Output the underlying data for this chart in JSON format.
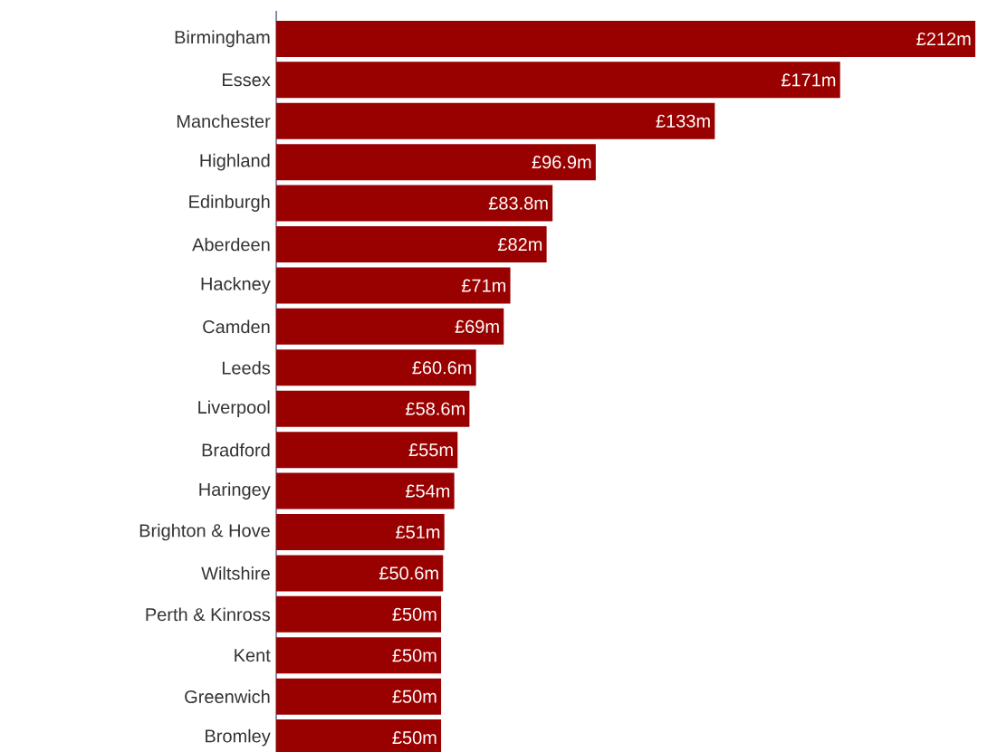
{
  "chart_data": {
    "type": "bar",
    "orientation": "horizontal",
    "categories": [
      "Birmingham",
      "Essex",
      "Manchester",
      "Highland",
      "Edinburgh",
      "Aberdeen",
      "Hackney",
      "Camden",
      "Leeds",
      "Liverpool",
      "Bradford",
      "Haringey",
      "Brighton & Hove",
      "Wiltshire",
      "Perth & Kinross",
      "Kent",
      "Greenwich",
      "Bromley"
    ],
    "values": [
      212,
      171,
      133,
      96.9,
      83.8,
      82,
      71,
      69,
      60.6,
      58.6,
      55,
      54,
      51,
      50.6,
      50,
      50,
      50,
      50
    ],
    "value_labels": [
      "£212m",
      "£171m",
      "£133m",
      "£96.9m",
      "£83.8m",
      "£82m",
      "£71m",
      "£69m",
      "£60.6m",
      "£58.6m",
      "£55m",
      "£54m",
      "£51m",
      "£50.6m",
      "£50m",
      "£50m",
      "£50m",
      "£50m"
    ],
    "color": "#990000"
  }
}
